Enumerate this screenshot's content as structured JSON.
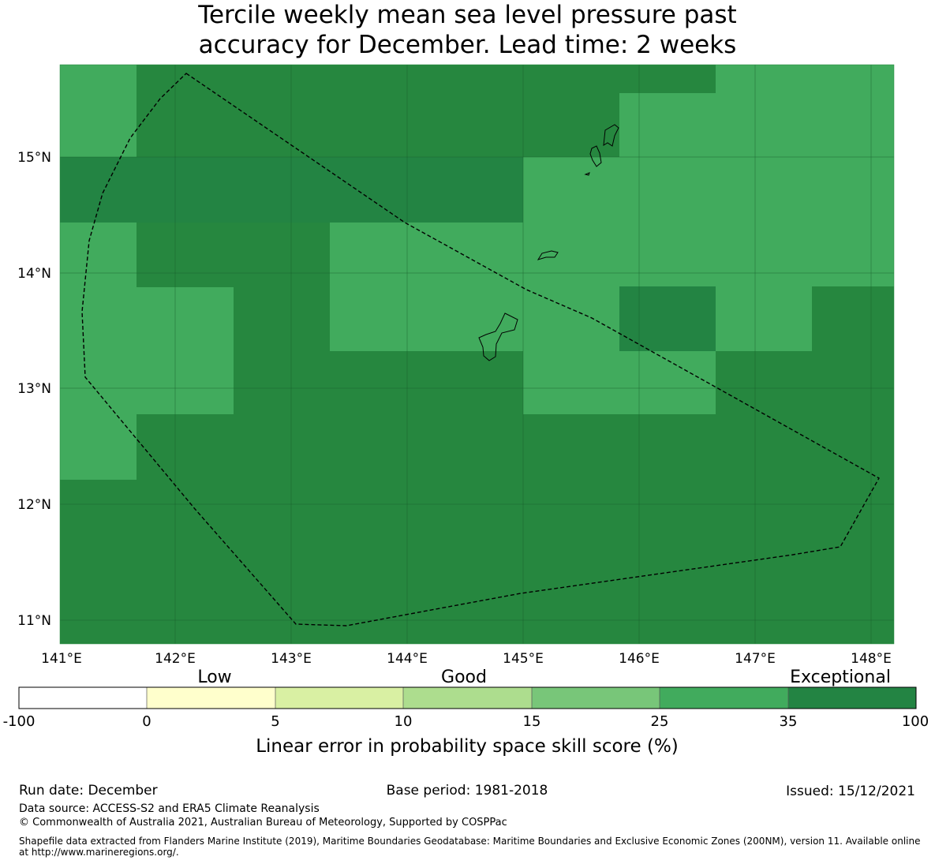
{
  "title_line1": "Tercile weekly mean sea level pressure past",
  "title_line2": "accuracy for December. Lead time: 2 weeks",
  "map": {
    "lon_ticks": [
      "141°E",
      "142°E",
      "143°E",
      "144°E",
      "145°E",
      "146°E",
      "147°E",
      "148°E"
    ],
    "lat_ticks": [
      "15°N",
      "14°N",
      "13°N",
      "12°N",
      "11°N"
    ],
    "colors": {
      "dark_green": "#26873f",
      "mid_green": "#41ab5d",
      "gridline": "#1a5c2b"
    }
  },
  "colorbar": {
    "category_labels": [
      "Low",
      "Good",
      "Exceptional"
    ],
    "tick_labels": [
      "-100",
      "0",
      "5",
      "10",
      "15",
      "25",
      "35",
      "100"
    ],
    "colors": [
      "#ffffff",
      "#ffffcc",
      "#d9f0a3",
      "#addd8e",
      "#78c679",
      "#41ab5d",
      "#238443"
    ],
    "title": "Linear error in probability space skill score (%)"
  },
  "footer": {
    "run_date": "Run date: December",
    "base_period": "Base period: 1981-2018",
    "issued": "Issued: 15/12/2021",
    "data_source": "Data source: ACCESS-S2 and ERA5 Climate Reanalysis",
    "copyright": "© Commonwealth of Australia 2021, Australian Bureau of Meteorology, Supported by COSPPac",
    "shapefile_line1": "Shapefile data extracted from Flanders Marine Institute (2019), Maritime Boundaries Geodatabase: Maritime Boundaries and Exclusive Economic Zones (200NM), version 11. Available online",
    "shapefile_line2": "at http://www.marineregions.org/."
  }
}
